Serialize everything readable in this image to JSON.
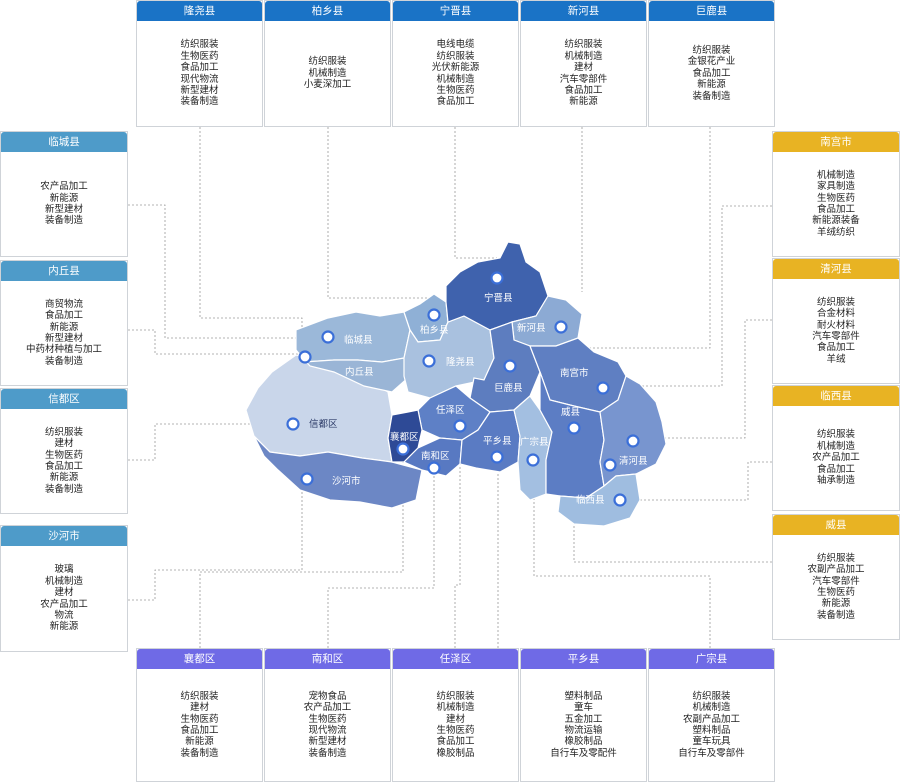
{
  "top": [
    {
      "name": "隆尧县",
      "items": [
        "纺织服装",
        "生物医药",
        "食品加工",
        "现代物流",
        "新型建材",
        "装备制造"
      ]
    },
    {
      "name": "柏乡县",
      "items": [
        "纺织服装",
        "机械制造",
        "小麦深加工"
      ]
    },
    {
      "name": "宁晋县",
      "items": [
        "电线电缆",
        "纺织服装",
        "光伏新能源",
        "机械制造",
        "生物医药",
        "食品加工"
      ]
    },
    {
      "name": "新河县",
      "items": [
        "纺织服装",
        "机械制造",
        "建材",
        "汽车零部件",
        "食品加工",
        "新能源"
      ]
    },
    {
      "name": "巨鹿县",
      "items": [
        "纺织服装",
        "金银花产业",
        "食品加工",
        "新能源",
        "装备制造"
      ]
    }
  ],
  "left": [
    {
      "name": "临城县",
      "items": [
        "农产品加工",
        "新能源",
        "新型建材",
        "装备制造"
      ]
    },
    {
      "name": "内丘县",
      "items": [
        "商贸物流",
        "食品加工",
        "新能源",
        "新型建材",
        "中药材种植与加工",
        "装备制造"
      ]
    },
    {
      "name": "信都区",
      "items": [
        "纺织服装",
        "建材",
        "生物医药",
        "食品加工",
        "新能源",
        "装备制造"
      ]
    },
    {
      "name": "沙河市",
      "items": [
        "玻璃",
        "机械制造",
        "建材",
        "农产品加工",
        "物流",
        "新能源"
      ]
    }
  ],
  "right": [
    {
      "name": "南宫市",
      "items": [
        "机械制造",
        "家具制造",
        "生物医药",
        "食品加工",
        "新能源装备",
        "羊绒纺织"
      ]
    },
    {
      "name": "清河县",
      "items": [
        "纺织服装",
        "合金材料",
        "耐火材料",
        "汽车零部件",
        "食品加工",
        "羊绒"
      ]
    },
    {
      "name": "临西县",
      "items": [
        "纺织服装",
        "机械制造",
        "农产品加工",
        "食品加工",
        "轴承制造"
      ]
    },
    {
      "name": "威县",
      "items": [
        "纺织服装",
        "农副产品加工",
        "汽车零部件",
        "生物医药",
        "新能源",
        "装备制造"
      ]
    }
  ],
  "bottom": [
    {
      "name": "襄都区",
      "items": [
        "纺织服装",
        "建材",
        "生物医药",
        "食品加工",
        "新能源",
        "装备制造"
      ]
    },
    {
      "name": "南和区",
      "items": [
        "宠物食品",
        "农产品加工",
        "生物医药",
        "现代物流",
        "新型建材",
        "装备制造"
      ]
    },
    {
      "name": "任泽区",
      "items": [
        "纺织服装",
        "机械制造",
        "建材",
        "生物医药",
        "食品加工",
        "橡胶制品"
      ]
    },
    {
      "name": "平乡县",
      "items": [
        "塑料制品",
        "童车",
        "五金加工",
        "物流运输",
        "橡胶制品",
        "自行车及零配件"
      ]
    },
    {
      "name": "广宗县",
      "items": [
        "纺织服装",
        "机械制造",
        "农副产品加工",
        "塑料制品",
        "童车玩具",
        "自行车及零部件"
      ]
    }
  ],
  "map_labels": {
    "ningjin": "宁晋县",
    "baixiang": "柏乡县",
    "xinhe": "新河县",
    "lincheng": "临城县",
    "longyao": "隆尧县",
    "neiqiu": "内丘县",
    "julu": "巨鹿县",
    "nangong": "南宫市",
    "xindu": "信都区",
    "renze": "任泽区",
    "xiangdu": "襄都区",
    "weixian": "威县",
    "pingxiang": "平乡县",
    "guangzong": "广宗县",
    "qinghe": "清河县",
    "nanhe": "南和区",
    "shahe": "沙河市",
    "linxi": "临西县"
  },
  "colors": {
    "top_header": "#1a73c6",
    "left_header": "#4e9bc9",
    "right_header": "#e8b323",
    "bottom_header": "#6f6ae6"
  }
}
